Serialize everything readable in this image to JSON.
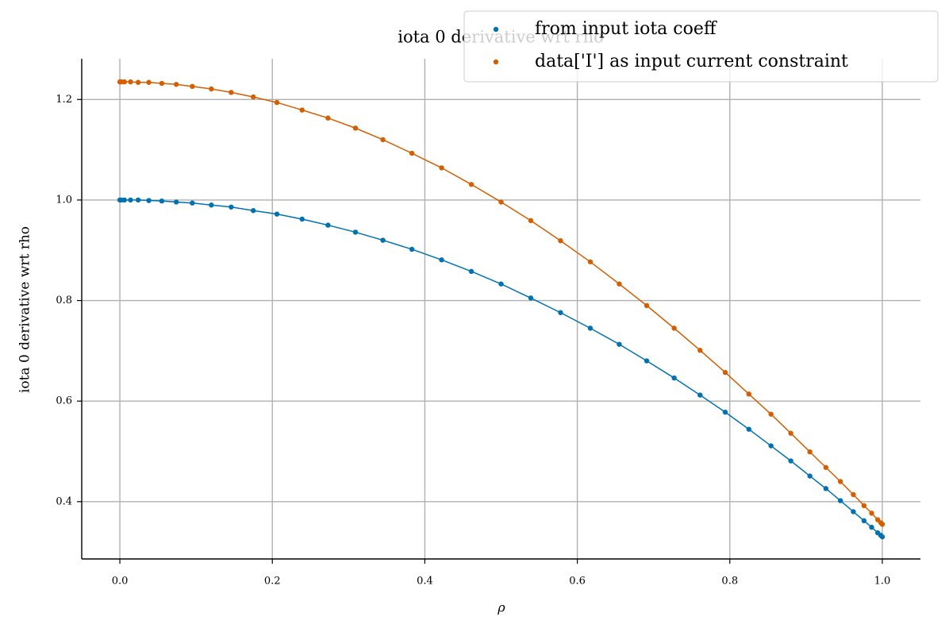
{
  "chart_data": {
    "type": "scatter",
    "title": "iota 0 derivative wrt rho",
    "xlabel": "ρ",
    "ylabel": "iota 0 derivative wrt rho",
    "x": [
      0,
      0.002,
      0.006,
      0.014,
      0.024,
      0.038,
      0.055,
      0.074,
      0.095,
      0.12,
      0.146,
      0.175,
      0.206,
      0.239,
      0.273,
      0.309,
      0.345,
      0.383,
      0.422,
      0.461,
      0.5,
      0.539,
      0.578,
      0.617,
      0.655,
      0.691,
      0.727,
      0.761,
      0.794,
      0.825,
      0.854,
      0.88,
      0.905,
      0.926,
      0.945,
      0.962,
      0.976,
      0.986,
      0.994,
      0.998,
      1
    ],
    "series": [
      {
        "name": "from input iota coeff",
        "color": "#0072b2",
        "values": [
          1,
          1,
          1,
          1,
          1,
          0.999,
          0.998,
          0.996,
          0.994,
          0.99,
          0.986,
          0.979,
          0.972,
          0.962,
          0.95,
          0.936,
          0.92,
          0.902,
          0.881,
          0.858,
          0.833,
          0.805,
          0.776,
          0.745,
          0.713,
          0.68,
          0.646,
          0.612,
          0.578,
          0.544,
          0.511,
          0.481,
          0.451,
          0.426,
          0.402,
          0.38,
          0.362,
          0.349,
          0.338,
          0.333,
          0.33
        ]
      },
      {
        "name": "data['I'] as input current constraint",
        "color": "#d55e00",
        "values": [
          1.235,
          1.235,
          1.235,
          1.235,
          1.234,
          1.234,
          1.232,
          1.23,
          1.226,
          1.221,
          1.214,
          1.205,
          1.194,
          1.179,
          1.163,
          1.143,
          1.12,
          1.093,
          1.064,
          1.031,
          0.996,
          0.959,
          0.919,
          0.877,
          0.833,
          0.79,
          0.745,
          0.701,
          0.657,
          0.614,
          0.574,
          0.536,
          0.499,
          0.468,
          0.44,
          0.414,
          0.392,
          0.377,
          0.364,
          0.358,
          0.355
        ]
      }
    ],
    "xlim": [
      -0.05,
      1.05
    ],
    "ylim": [
      0.286,
      1.281
    ],
    "xticks": [
      {
        "value": 0,
        "label": "0.0"
      },
      0.2,
      0.4,
      0.6,
      0.8,
      {
        "value": 1,
        "label": "1.0"
      }
    ],
    "yticks": [
      0.4,
      0.6,
      0.8,
      {
        "value": 1,
        "label": "1.0"
      },
      1.2
    ],
    "grid": true,
    "legend": "upper right"
  }
}
